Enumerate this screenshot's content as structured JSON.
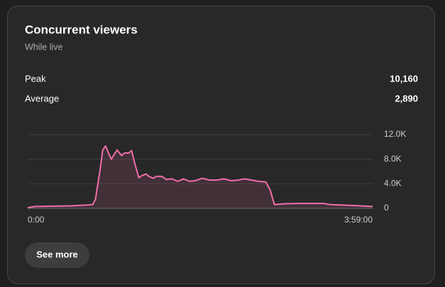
{
  "card": {
    "title": "Concurrent viewers",
    "subtitle": "While live",
    "stats": [
      {
        "label": "Peak",
        "value": "10,160"
      },
      {
        "label": "Average",
        "value": "2,890"
      }
    ],
    "button": "See more"
  },
  "chart_data": {
    "type": "line",
    "x": [
      0,
      5,
      30,
      45,
      47,
      50,
      52,
      54,
      56,
      58,
      60,
      62,
      65,
      67,
      70,
      72,
      74,
      77,
      79,
      82,
      84,
      87,
      89,
      93,
      96,
      100,
      104,
      108,
      112,
      116,
      121,
      126,
      131,
      136,
      141,
      146,
      150,
      155,
      160,
      165,
      168,
      171,
      178,
      187,
      205,
      210,
      227,
      239
    ],
    "series": [
      {
        "name": "Concurrent viewers",
        "color": "#f06eaa",
        "values": [
          100,
          300,
          400,
          600,
          1500,
          6000,
          9500,
          10160,
          9000,
          8000,
          8800,
          9500,
          8600,
          9000,
          9000,
          9400,
          7500,
          5000,
          5300,
          5600,
          5200,
          4900,
          5200,
          5200,
          4700,
          4800,
          4400,
          4800,
          4400,
          4500,
          4900,
          4600,
          4600,
          4800,
          4500,
          4600,
          4800,
          4600,
          4400,
          4300,
          3000,
          600,
          750,
          800,
          800,
          600,
          450,
          300
        ]
      }
    ],
    "xlim": [
      0,
      239
    ],
    "xticks": [
      {
        "value": 0,
        "label": "0:00"
      },
      {
        "value": 239,
        "label": "3:59:00"
      }
    ],
    "ylim": [
      0,
      12000
    ],
    "yticks": [
      0,
      {
        "value": 4000,
        "label": "4.0K"
      },
      {
        "value": 8000,
        "label": "8.0K"
      },
      {
        "value": 12000,
        "label": "12.0K"
      }
    ],
    "grid": true
  }
}
